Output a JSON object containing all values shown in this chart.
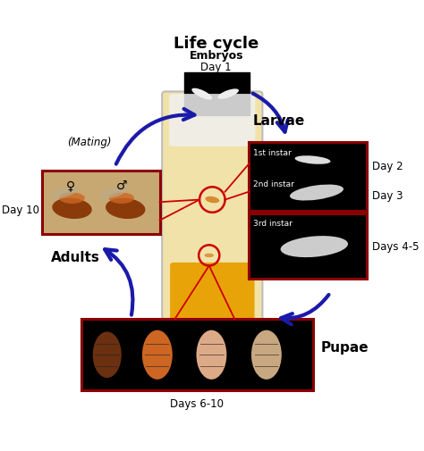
{
  "title": "Life cycle",
  "bg_color": "#ffffff",
  "arrow_color": "#1a1aaa",
  "box_border_color": "#8B0000",
  "red_line_color": "#CC0000",
  "labels": {
    "embryos": "Embryos",
    "day1": "Day 1",
    "larvae": "Larvae",
    "instar1": "1st instar",
    "instar2": "2nd instar",
    "instar3": "3rd instar",
    "day2": "Day 2",
    "day3": "Day 3",
    "days45": "Days 4-5",
    "pupae": "Pupae",
    "days610": "Days 6-10",
    "adults": "Adults",
    "day10": "Day 10",
    "mating": "(Mating)",
    "female": "♀",
    "male": "♂"
  },
  "figsize": [
    4.74,
    5.05
  ],
  "dpi": 100
}
